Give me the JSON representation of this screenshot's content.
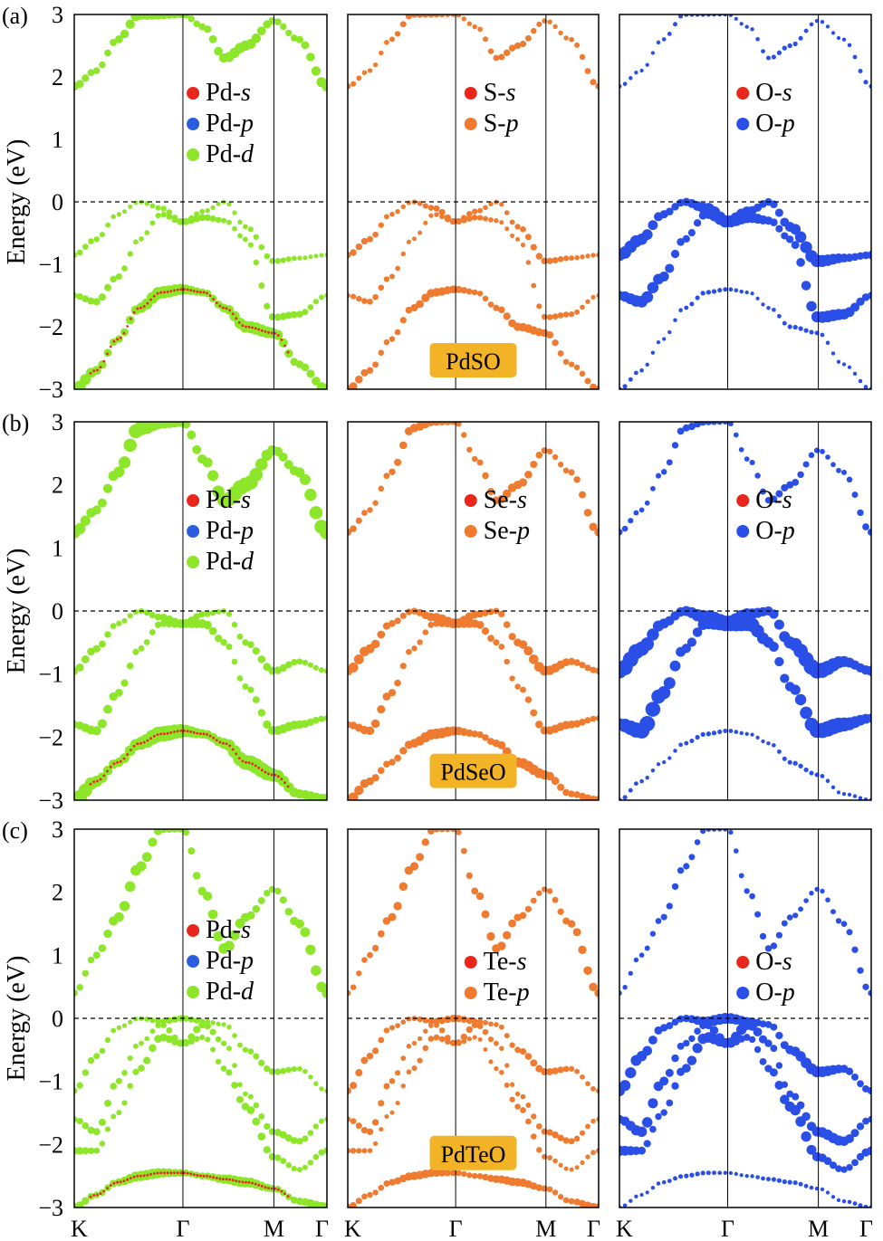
{
  "figure": {
    "ylabel": "Energy (eV)",
    "yticks": [
      "3",
      "2",
      "1",
      "0",
      "−1",
      "−2",
      "−3"
    ],
    "xticks": [
      "K",
      "Γ",
      "M",
      "Γ"
    ],
    "colors": {
      "s": "#e8261c",
      "p_pd": "#2a5de0",
      "d": "#8ee62a",
      "chalc": "#ee7b2f",
      "o": "#2a4fe6",
      "tag": "#f2b426"
    }
  },
  "rows": [
    {
      "label": "(a)",
      "material": "PdSO",
      "panels": [
        {
          "legend": [
            {
              "color": "#e8261c",
              "base": "Pd-",
              "orb": "s"
            },
            {
              "color": "#2a5de0",
              "base": "Pd-",
              "orb": "p"
            },
            {
              "color": "#8ee62a",
              "base": "Pd-",
              "orb": "d"
            }
          ]
        },
        {
          "legend": [
            {
              "color": "#e8261c",
              "base": "S-",
              "orb": "s"
            },
            {
              "color": "#ee7b2f",
              "base": "S-",
              "orb": "p"
            }
          ]
        },
        {
          "legend": [
            {
              "color": "#e8261c",
              "base": "O-",
              "orb": "s"
            },
            {
              "color": "#2a4fe6",
              "base": "O-",
              "orb": "p"
            }
          ]
        }
      ]
    },
    {
      "label": "(b)",
      "material": "PdSeO",
      "panels": [
        {
          "legend": [
            {
              "color": "#e8261c",
              "base": "Pd-",
              "orb": "s"
            },
            {
              "color": "#2a5de0",
              "base": "Pd-",
              "orb": "p"
            },
            {
              "color": "#8ee62a",
              "base": "Pd-",
              "orb": "d"
            }
          ]
        },
        {
          "legend": [
            {
              "color": "#e8261c",
              "base": "Se-",
              "orb": "s"
            },
            {
              "color": "#ee7b2f",
              "base": "Se-",
              "orb": "p"
            }
          ]
        },
        {
          "legend": [
            {
              "color": "#e8261c",
              "base": "O-",
              "orb": "s"
            },
            {
              "color": "#2a4fe6",
              "base": "O-",
              "orb": "p"
            }
          ]
        }
      ]
    },
    {
      "label": "(c)",
      "material": "PdTeO",
      "panels": [
        {
          "legend": [
            {
              "color": "#e8261c",
              "base": "Pd-",
              "orb": "s"
            },
            {
              "color": "#2a5de0",
              "base": "Pd-",
              "orb": "p"
            },
            {
              "color": "#8ee62a",
              "base": "Pd-",
              "orb": "d"
            }
          ]
        },
        {
          "legend": [
            {
              "color": "#e8261c",
              "base": "Te-",
              "orb": "s"
            },
            {
              "color": "#ee7b2f",
              "base": "Te-",
              "orb": "p"
            }
          ]
        },
        {
          "legend": [
            {
              "color": "#e8261c",
              "base": "O-",
              "orb": "s"
            },
            {
              "color": "#2a4fe6",
              "base": "O-",
              "orb": "p"
            }
          ]
        }
      ]
    }
  ],
  "chart_data": {
    "type": "scatter",
    "ylim": [
      -3,
      3
    ],
    "x_kpoints": [
      "K",
      "Γ",
      "M",
      "Γ"
    ],
    "x_positions": [
      0,
      1,
      1.866,
      2.366
    ],
    "fermi_level": 0,
    "bands": [
      {
        "material": "PdSO",
        "x": [
          0,
          0.2,
          0.4,
          0.6,
          0.8,
          1.0,
          1.2,
          1.4,
          1.6,
          1.866,
          2.1,
          2.366
        ],
        "series": [
          {
            "name": "band-v1",
            "values": [
              -1.5,
              -1.6,
              -1.2,
              -0.6,
              -0.2,
              -0.32,
              -0.25,
              -0.3,
              -0.6,
              -1.85,
              -1.8,
              -1.5
            ]
          },
          {
            "name": "band-v2",
            "values": [
              -0.85,
              -0.6,
              -0.2,
              0.0,
              -0.1,
              -0.32,
              -0.15,
              0.0,
              -0.4,
              -0.95,
              -0.9,
              -0.85
            ]
          },
          {
            "name": "band-v3",
            "values": [
              -3.0,
              -2.7,
              -2.2,
              -1.7,
              -1.45,
              -1.4,
              -1.45,
              -1.7,
              -2.0,
              -2.1,
              -2.6,
              -3.0
            ]
          },
          {
            "name": "band-c1",
            "values": [
              1.85,
              2.1,
              2.6,
              3.0,
              3.0,
              3.0,
              2.8,
              2.3,
              2.5,
              2.9,
              2.6,
              1.85
            ]
          }
        ]
      },
      {
        "material": "PdSeO",
        "x": [
          0,
          0.2,
          0.4,
          0.6,
          0.8,
          1.0,
          1.2,
          1.4,
          1.6,
          1.866,
          2.1,
          2.366
        ],
        "series": [
          {
            "name": "band-v1",
            "values": [
              -1.8,
              -1.9,
              -1.3,
              -0.6,
              -0.2,
              -0.2,
              -0.2,
              -0.5,
              -1.2,
              -1.9,
              -1.8,
              -1.7
            ]
          },
          {
            "name": "band-v2",
            "values": [
              -0.95,
              -0.6,
              -0.2,
              0.0,
              -0.1,
              -0.2,
              -0.05,
              0.0,
              -0.5,
              -0.95,
              -0.8,
              -0.95
            ]
          },
          {
            "name": "band-v3",
            "values": [
              -3.0,
              -2.7,
              -2.4,
              -2.1,
              -1.95,
              -1.9,
              -1.95,
              -2.1,
              -2.4,
              -2.6,
              -2.9,
              -3.0
            ]
          },
          {
            "name": "band-c1",
            "values": [
              1.25,
              1.6,
              2.2,
              2.9,
              3.0,
              3.0,
              2.4,
              1.75,
              2.0,
              2.55,
              2.2,
              1.25
            ]
          }
        ]
      },
      {
        "material": "PdTeO",
        "x": [
          0,
          0.2,
          0.4,
          0.6,
          0.8,
          1.0,
          1.2,
          1.4,
          1.6,
          1.866,
          2.1,
          2.366
        ],
        "series": [
          {
            "name": "band-v1",
            "values": [
              -1.6,
              -1.8,
              -1.0,
              -0.4,
              -0.1,
              -0.4,
              -0.1,
              -0.4,
              -1.2,
              -1.8,
              -1.95,
              -1.6
            ]
          },
          {
            "name": "band-v2",
            "values": [
              -1.15,
              -0.6,
              -0.15,
              0.0,
              -0.05,
              0.0,
              -0.05,
              -0.1,
              -0.5,
              -0.85,
              -0.8,
              -1.15
            ]
          },
          {
            "name": "band-v3",
            "values": [
              -2.1,
              -2.1,
              -1.5,
              -0.8,
              -0.3,
              -0.4,
              -0.3,
              -0.8,
              -1.4,
              -2.2,
              -2.4,
              -2.1
            ]
          },
          {
            "name": "band-v4",
            "values": [
              -3.0,
              -2.8,
              -2.6,
              -2.5,
              -2.45,
              -2.45,
              -2.5,
              -2.55,
              -2.6,
              -2.7,
              -2.9,
              -3.0
            ]
          },
          {
            "name": "band-c1",
            "values": [
              0.4,
              1.0,
              1.6,
              2.4,
              3.0,
              3.0,
              2.0,
              1.1,
              1.6,
              2.05,
              1.5,
              0.4
            ]
          }
        ]
      }
    ]
  }
}
